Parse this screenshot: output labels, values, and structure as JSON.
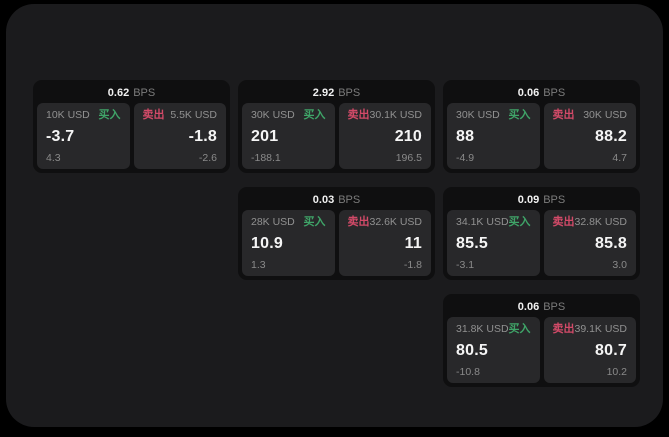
{
  "labels": {
    "bps": "BPS",
    "buy": "买入",
    "sell": "卖出"
  },
  "colors": {
    "outer_bg": "#000000",
    "panel_bg": "#1b1b1d",
    "card_bg": "#0f0f10",
    "tile_bg": "#28282a",
    "buy_green": "#3fa468",
    "sell_red": "#d24a68",
    "text_primary": "#f5f5f5",
    "text_secondary": "#8a8a8a"
  },
  "cards": [
    {
      "bps": "0.62",
      "buy": {
        "amount": "10K USD",
        "value": "-3.7",
        "sub": "4.3"
      },
      "sell": {
        "amount": "5.5K USD",
        "value": "-1.8",
        "sub": "-2.6"
      }
    },
    {
      "bps": "2.92",
      "buy": {
        "amount": "30K USD",
        "value": "201",
        "sub": "-188.1"
      },
      "sell": {
        "amount": "30.1K USD",
        "value": "210",
        "sub": "196.5"
      }
    },
    {
      "bps": "0.06",
      "buy": {
        "amount": "30K USD",
        "value": "88",
        "sub": "-4.9"
      },
      "sell": {
        "amount": "30K USD",
        "value": "88.2",
        "sub": "4.7"
      }
    },
    {
      "bps": "0.03",
      "buy": {
        "amount": "28K USD",
        "value": "10.9",
        "sub": "1.3"
      },
      "sell": {
        "amount": "32.6K USD",
        "value": "11",
        "sub": "-1.8"
      }
    },
    {
      "bps": "0.09",
      "buy": {
        "amount": "34.1K USD",
        "value": "85.5",
        "sub": "-3.1"
      },
      "sell": {
        "amount": "32.8K USD",
        "value": "85.8",
        "sub": "3.0"
      }
    },
    {
      "bps": "0.06",
      "buy": {
        "amount": "31.8K USD",
        "value": "80.5",
        "sub": "-10.8"
      },
      "sell": {
        "amount": "39.1K USD",
        "value": "80.7",
        "sub": "10.2"
      }
    }
  ]
}
